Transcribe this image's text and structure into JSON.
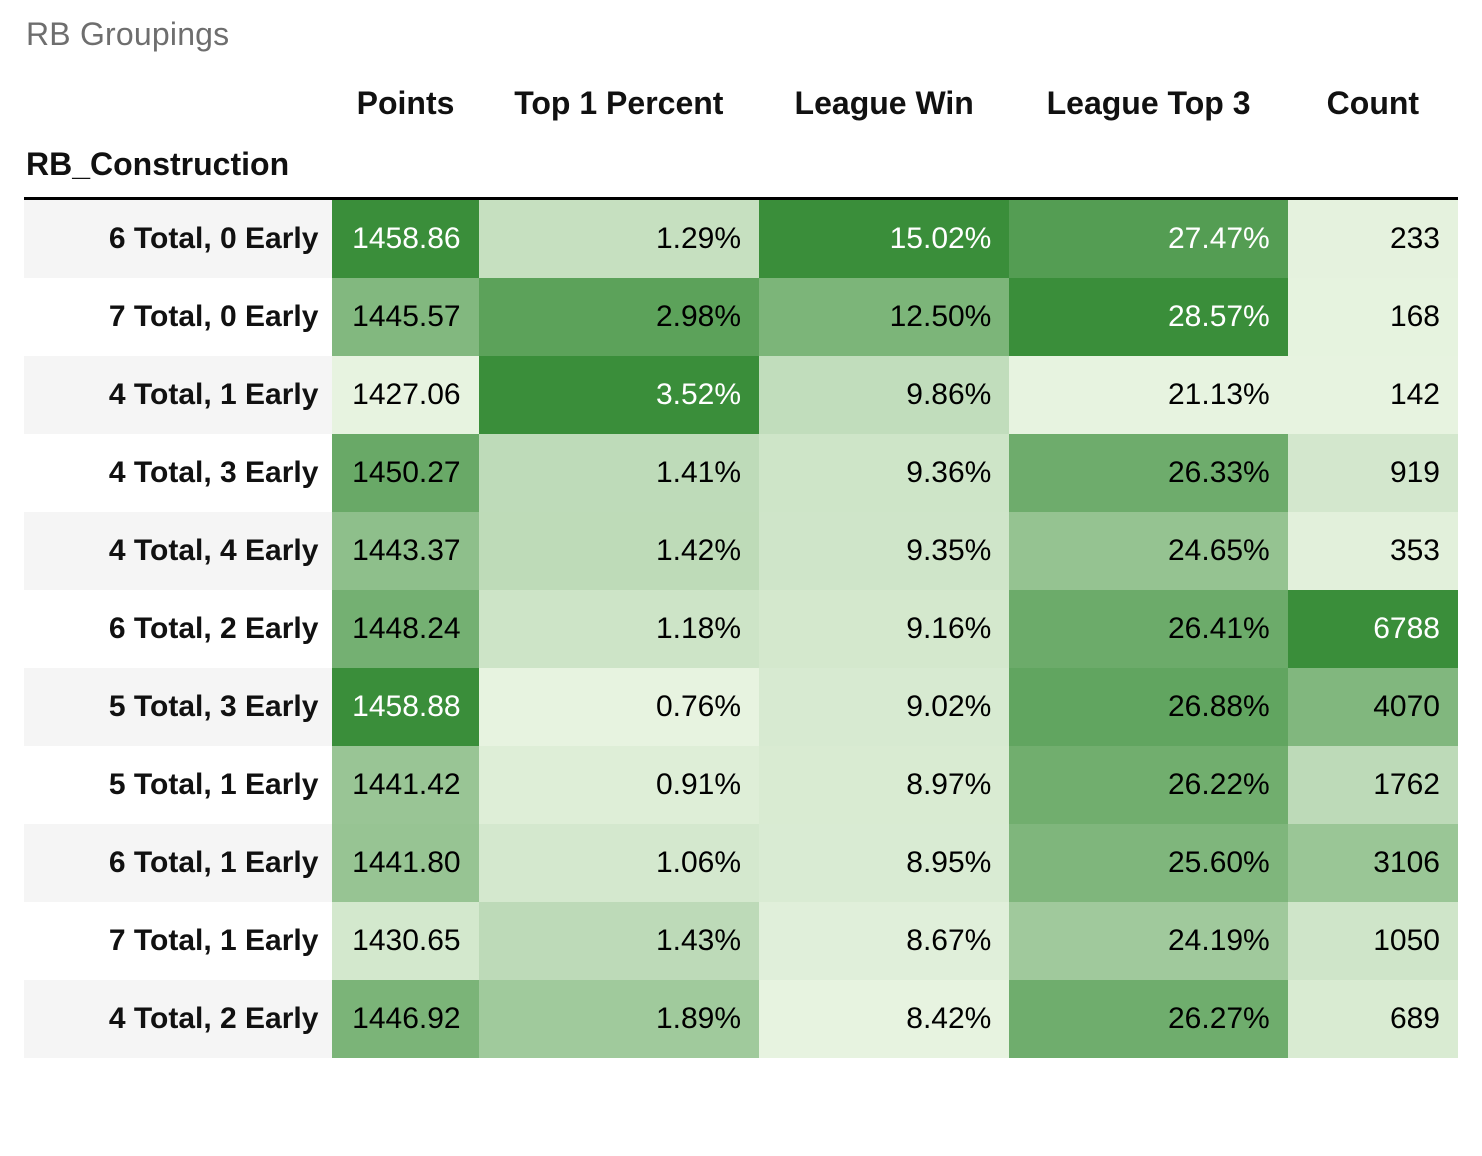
{
  "title": "RB Groupings",
  "index_name": "RB_Construction",
  "heatmap": {
    "type": "table-heatmap",
    "color_scale": {
      "low": "#e7f3e0",
      "high": "#3a8e3a"
    },
    "white_text_threshold": 0.82,
    "row_header_bg": {
      "even": "#f5f5f5",
      "odd": "#ffffff"
    }
  },
  "columns": [
    {
      "key": "points",
      "label": "Points",
      "decimals": 2,
      "suffix": "",
      "min": 1427.06,
      "max": 1458.88
    },
    {
      "key": "top1",
      "label": "Top 1 Percent",
      "decimals": 2,
      "suffix": "%",
      "min": 0.76,
      "max": 3.52
    },
    {
      "key": "lwin",
      "label": "League Win",
      "decimals": 2,
      "suffix": "%",
      "min": 8.42,
      "max": 15.02
    },
    {
      "key": "ltop3",
      "label": "League Top 3",
      "decimals": 2,
      "suffix": "%",
      "min": 21.13,
      "max": 28.57
    },
    {
      "key": "count",
      "label": "Count",
      "decimals": 0,
      "suffix": "",
      "min": 142,
      "max": 6788
    }
  ],
  "rows": [
    {
      "label": "6 Total, 0 Early",
      "points": 1458.86,
      "top1": 1.29,
      "lwin": 15.02,
      "ltop3": 27.47,
      "count": 233
    },
    {
      "label": "7 Total, 0 Early",
      "points": 1445.57,
      "top1": 2.98,
      "lwin": 12.5,
      "ltop3": 28.57,
      "count": 168
    },
    {
      "label": "4 Total, 1 Early",
      "points": 1427.06,
      "top1": 3.52,
      "lwin": 9.86,
      "ltop3": 21.13,
      "count": 142
    },
    {
      "label": "4 Total, 3 Early",
      "points": 1450.27,
      "top1": 1.41,
      "lwin": 9.36,
      "ltop3": 26.33,
      "count": 919
    },
    {
      "label": "4 Total, 4 Early",
      "points": 1443.37,
      "top1": 1.42,
      "lwin": 9.35,
      "ltop3": 24.65,
      "count": 353
    },
    {
      "label": "6 Total, 2 Early",
      "points": 1448.24,
      "top1": 1.18,
      "lwin": 9.16,
      "ltop3": 26.41,
      "count": 6788
    },
    {
      "label": "5 Total, 3 Early",
      "points": 1458.88,
      "top1": 0.76,
      "lwin": 9.02,
      "ltop3": 26.88,
      "count": 4070
    },
    {
      "label": "5 Total, 1 Early",
      "points": 1441.42,
      "top1": 0.91,
      "lwin": 8.97,
      "ltop3": 26.22,
      "count": 1762
    },
    {
      "label": "6 Total, 1 Early",
      "points": 1441.8,
      "top1": 1.06,
      "lwin": 8.95,
      "ltop3": 25.6,
      "count": 3106
    },
    {
      "label": "7 Total, 1 Early",
      "points": 1430.65,
      "top1": 1.43,
      "lwin": 8.67,
      "ltop3": 24.19,
      "count": 1050
    },
    {
      "label": "4 Total, 2 Early",
      "points": 1446.92,
      "top1": 1.89,
      "lwin": 8.42,
      "ltop3": 26.27,
      "count": 689
    }
  ]
}
